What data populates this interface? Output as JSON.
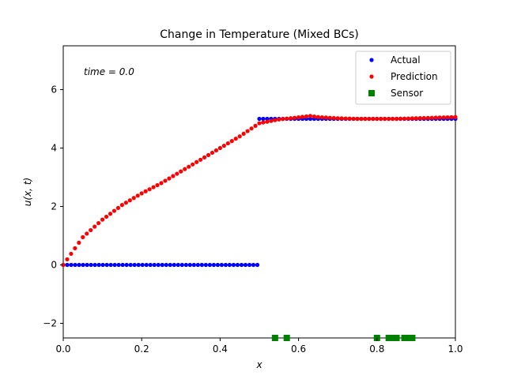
{
  "chart_data": {
    "type": "scatter",
    "title": "Change in Temperature (Mixed BCs)",
    "xlabel": "x",
    "ylabel": "u(x, t)",
    "annotation": "time = 0.0",
    "xlim": [
      0.0,
      1.0
    ],
    "ylim": [
      -2.5,
      7.5
    ],
    "xticks": [
      0.0,
      0.2,
      0.4,
      0.6,
      0.8,
      1.0
    ],
    "xtick_labels": [
      "0.0",
      "0.2",
      "0.4",
      "0.6",
      "0.8",
      "1.0"
    ],
    "yticks": [
      -2,
      0,
      2,
      4,
      6
    ],
    "ytick_labels": [
      "−2",
      "0",
      "2",
      "4",
      "6"
    ],
    "grid": false,
    "legend_position": "top-right",
    "series": [
      {
        "name": "Actual",
        "marker": "circle",
        "color": "#0000ff",
        "segments": [
          {
            "x_start": 0.0,
            "x_end": 0.495,
            "y": 0.0,
            "count": 50
          },
          {
            "x_start": 0.5,
            "x_end": 1.0,
            "y": 5.0,
            "count": 51
          }
        ]
      },
      {
        "name": "Prediction",
        "marker": "circle",
        "color": "#ff0000",
        "x": [
          0.0,
          0.05,
          0.1,
          0.15,
          0.2,
          0.25,
          0.3,
          0.35,
          0.4,
          0.45,
          0.5,
          0.55,
          0.6,
          0.63,
          0.65,
          0.7,
          0.75,
          0.8,
          0.85,
          0.9,
          0.95,
          1.0
        ],
        "y": [
          0.0,
          0.95,
          1.55,
          2.05,
          2.45,
          2.8,
          3.2,
          3.6,
          4.0,
          4.4,
          4.85,
          4.98,
          5.05,
          5.1,
          5.06,
          5.02,
          5.0,
          5.0,
          5.0,
          5.02,
          5.04,
          5.06
        ],
        "count": 101
      },
      {
        "name": "Sensor",
        "marker": "square",
        "color": "#008000",
        "x": [
          0.54,
          0.57,
          0.8,
          0.83,
          0.84,
          0.85,
          0.87,
          0.88,
          0.89
        ],
        "y": [
          -2.5,
          -2.5,
          -2.5,
          -2.5,
          -2.5,
          -2.5,
          -2.5,
          -2.5,
          -2.5
        ]
      }
    ]
  }
}
